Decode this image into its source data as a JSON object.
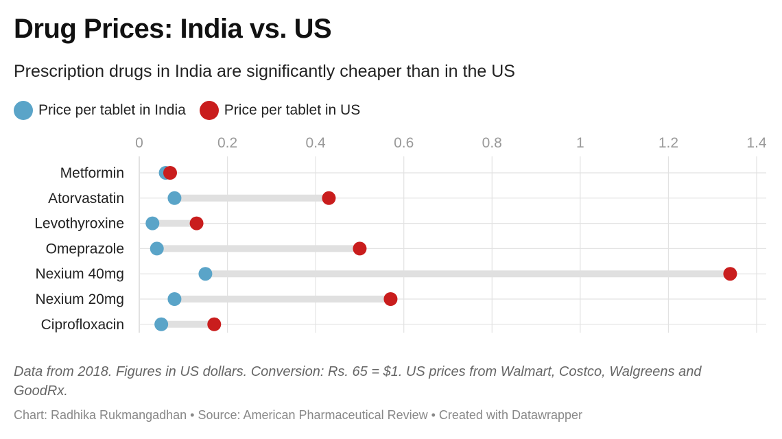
{
  "title": "Drug Prices: India vs. US",
  "subtitle": "Prescription drugs in India are significantly cheaper than in the US",
  "legend": [
    {
      "label": "Price per tablet in India",
      "color": "#5aa4c8"
    },
    {
      "label": "Price per tablet in US",
      "color": "#c91d1d"
    }
  ],
  "notes": "Data from 2018. Figures in US dollars. Conversion: Rs. 65 = $1. US prices from Walmart, Costco, Walgreens and GoodRx.",
  "byline": "Chart: Radhika Rukmangadhan • Source: American Pharmaceutical Review • Created with Datawrapper",
  "chart_data": {
    "type": "dot-range",
    "categories": [
      "Metformin",
      "Atorvastatin",
      "Levothyroxine",
      "Omeprazole",
      "Nexium 40mg",
      "Nexium 20mg",
      "Ciprofloxacin"
    ],
    "series": [
      {
        "name": "Price per tablet in India",
        "values": [
          0.06,
          0.08,
          0.03,
          0.04,
          0.15,
          0.08,
          0.05
        ]
      },
      {
        "name": "Price per tablet in US",
        "values": [
          0.07,
          0.43,
          0.13,
          0.5,
          1.34,
          0.57,
          0.17
        ]
      }
    ],
    "xlim": [
      0,
      1.4
    ],
    "xticks": [
      0,
      0.2,
      0.4,
      0.6,
      0.8,
      1,
      1.2,
      1.4
    ],
    "xtick_labels": [
      "0",
      "0.2",
      "0.4",
      "0.6",
      "0.8",
      "1",
      "1.2",
      "1.4"
    ],
    "grid": true,
    "colors": {
      "india": "#5aa4c8",
      "us": "#c91d1d",
      "range_bar": "#e0e0e0",
      "gridline": "#e2e2e2",
      "tick_label": "#999999"
    }
  }
}
